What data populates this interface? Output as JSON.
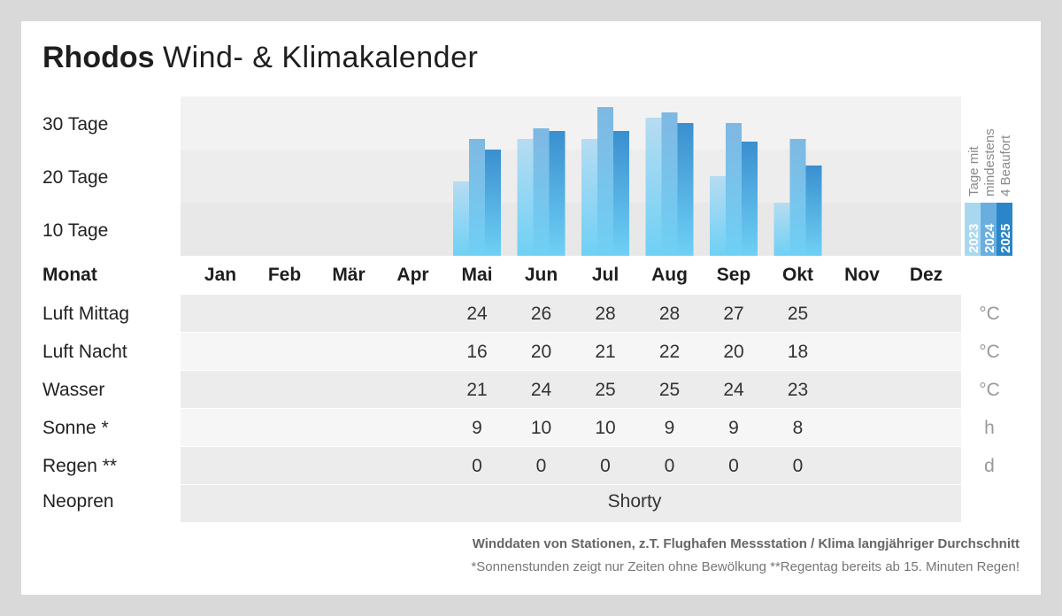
{
  "title": {
    "bold": "Rhodos",
    "rest": "Wind- & Klimakalender"
  },
  "y_labels": [
    "30 Tage",
    "20 Tage",
    "10 Tage"
  ],
  "legend": {
    "title_parts": [
      "Tage mit",
      "mindestens",
      "4 Beaufort"
    ],
    "years": [
      "2023",
      "2024",
      "2025"
    ],
    "colors": [
      "#a8d8f0",
      "#6aaee0",
      "#2a86c8"
    ]
  },
  "months_header": "Monat",
  "months": [
    "Jan",
    "Feb",
    "Mär",
    "Apr",
    "Mai",
    "Jun",
    "Jul",
    "Aug",
    "Sep",
    "Okt",
    "Nov",
    "Dez"
  ],
  "rows": [
    {
      "label": "Luft Mittag",
      "unit": "°C",
      "values": [
        "",
        "",
        "",
        "",
        "24",
        "26",
        "28",
        "28",
        "27",
        "25",
        "",
        ""
      ]
    },
    {
      "label": "Luft Nacht",
      "unit": "°C",
      "values": [
        "",
        "",
        "",
        "",
        "16",
        "20",
        "21",
        "22",
        "20",
        "18",
        "",
        ""
      ]
    },
    {
      "label": "Wasser",
      "unit": "°C",
      "values": [
        "",
        "",
        "",
        "",
        "21",
        "24",
        "25",
        "25",
        "24",
        "23",
        "",
        ""
      ]
    },
    {
      "label": "Sonne *",
      "unit": "h",
      "values": [
        "",
        "",
        "",
        "",
        "9",
        "10",
        "10",
        "9",
        "9",
        "8",
        "",
        ""
      ]
    },
    {
      "label": "Regen **",
      "unit": "d",
      "values": [
        "",
        "",
        "",
        "",
        "0",
        "0",
        "0",
        "0",
        "0",
        "0",
        "",
        ""
      ]
    }
  ],
  "neopren": {
    "label": "Neopren",
    "value": "Shorty"
  },
  "notes": {
    "line1": "Winddaten von Stationen, z.T. Flughafen Messstation / Klima langjähriger Durchschnitt",
    "line2": "*Sonnenstunden zeigt nur Zeiten ohne Bewölkung  **Regentag bereits ab 15. Minuten Regen!"
  },
  "chart_data": {
    "type": "bar",
    "categories": [
      "Jan",
      "Feb",
      "Mär",
      "Apr",
      "Mai",
      "Jun",
      "Jul",
      "Aug",
      "Sep",
      "Okt",
      "Nov",
      "Dez"
    ],
    "series": [
      {
        "name": "2023",
        "values": [
          0,
          0,
          0,
          0,
          14,
          22,
          22,
          26,
          15,
          10,
          0,
          0
        ]
      },
      {
        "name": "2024",
        "values": [
          0,
          0,
          0,
          0,
          22,
          24,
          28,
          27,
          25,
          22,
          0,
          0
        ]
      },
      {
        "name": "2025",
        "values": [
          0,
          0,
          0,
          0,
          20,
          23.5,
          23.5,
          25,
          21.5,
          17,
          0,
          0
        ]
      }
    ],
    "ylabel": "Tage mit mindestens 4 Beaufort",
    "ylim": [
      0,
      30
    ],
    "grid": true,
    "legend": "right"
  }
}
